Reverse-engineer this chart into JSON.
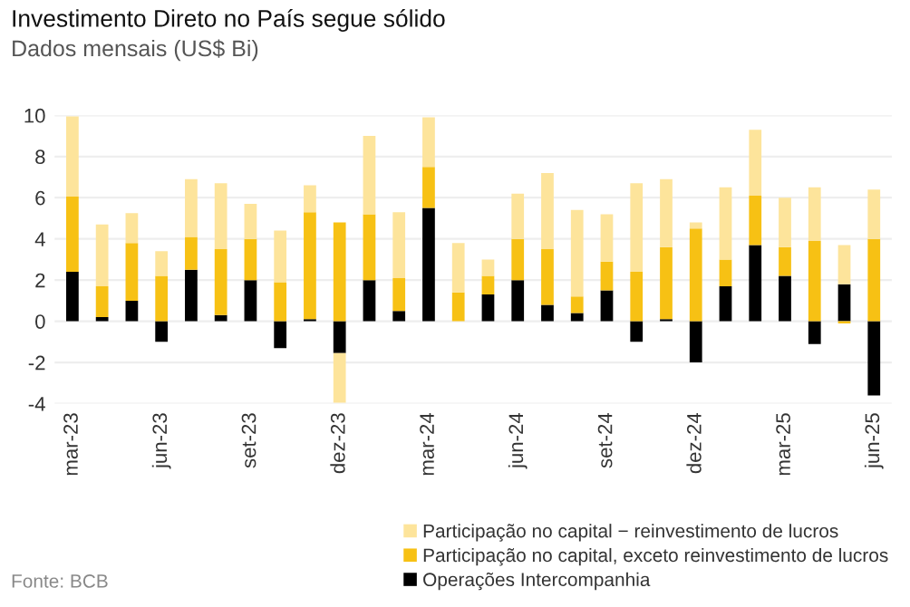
{
  "chart_data": {
    "type": "bar",
    "title": "Investimento Direto no País segue sólido",
    "subtitle": "Dados mensais (US$ Bi)",
    "stacked": true,
    "categories": [
      "mar-23",
      null,
      null,
      "jun-23",
      null,
      null,
      "set-23",
      null,
      null,
      "dez-23",
      null,
      null,
      "mar-24",
      null,
      null,
      "jun-24",
      null,
      null,
      "set-24",
      null,
      null,
      "dez-24",
      null,
      null,
      "mar-25",
      null,
      null,
      "jun-25"
    ],
    "series": [
      {
        "name": "Operações Intercompanhia",
        "color": "#000000",
        "values": [
          2.4,
          0.2,
          1.0,
          -1.0,
          2.5,
          0.3,
          2.0,
          -1.3,
          0.1,
          -1.55,
          2.0,
          0.5,
          5.5,
          0,
          1.3,
          2.0,
          0.8,
          0.4,
          1.5,
          -1.0,
          0.1,
          -2.0,
          1.7,
          3.7,
          2.2,
          -1.1,
          1.8,
          -3.6
        ]
      },
      {
        "name": "Participação no capital, exceto reinvestimento de lucros",
        "color": "#f7c114",
        "values": [
          3.65,
          1.5,
          2.8,
          2.2,
          1.6,
          3.2,
          2.0,
          1.9,
          5.2,
          4.8,
          3.2,
          1.6,
          2.0,
          1.4,
          0.9,
          2.0,
          2.7,
          0.8,
          1.4,
          2.4,
          3.5,
          4.5,
          1.3,
          2.4,
          1.4,
          3.9,
          -0.1,
          4.0
        ]
      },
      {
        "name": "Participação no capital − reinvestimento de lucros",
        "color": "#fde49b",
        "values": [
          3.9,
          3.0,
          1.45,
          1.2,
          2.8,
          3.2,
          1.7,
          2.5,
          1.3,
          -2.4,
          3.8,
          3.2,
          2.4,
          2.4,
          0.8,
          2.2,
          3.7,
          4.2,
          2.3,
          4.3,
          3.3,
          0.3,
          3.5,
          3.2,
          2.4,
          2.6,
          1.9,
          2.4
        ]
      }
    ],
    "ylim": [
      -4,
      10
    ],
    "yticks": [
      -4,
      -2,
      0,
      2,
      4,
      6,
      8,
      10
    ],
    "grid": "y",
    "legend": "bottom right",
    "annotations": [
      "Fonte: BCB"
    ]
  }
}
